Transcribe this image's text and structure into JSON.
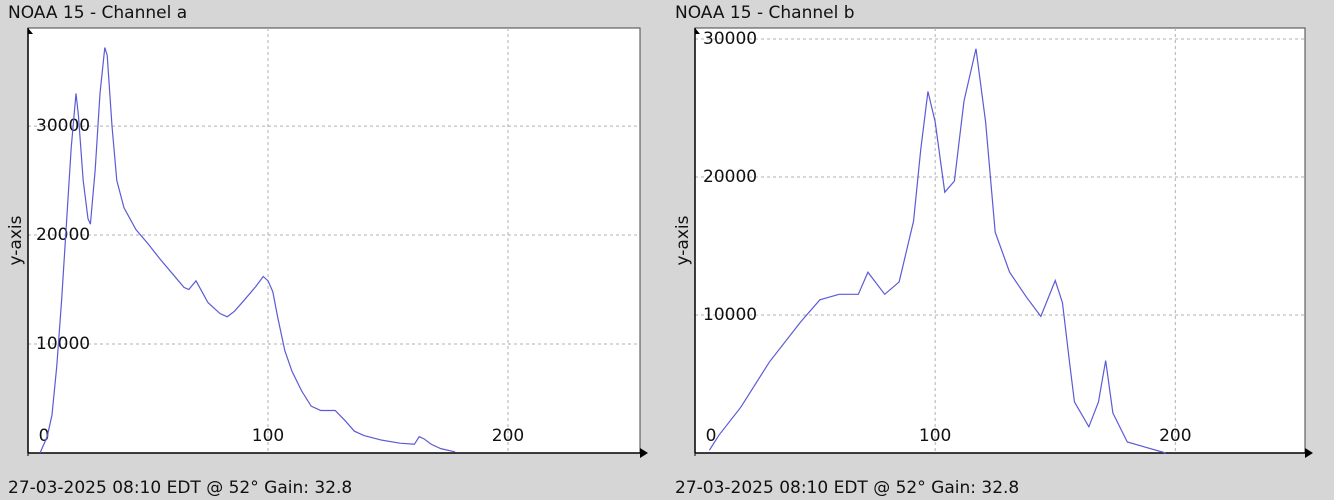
{
  "chart_data": [
    {
      "type": "line",
      "title": "NOAA 15 - Channel a",
      "footer": "27-03-2025 08:10 EDT @ 52° Gain: 32.8",
      "y_label": "y-axis",
      "xlim": [
        0,
        255
      ],
      "ylim": [
        0,
        39000
      ],
      "xticks": [
        0,
        100,
        200
      ],
      "yticks": [
        10000,
        20000,
        30000
      ],
      "grid": true,
      "series": [
        {
          "color": "#5b5bd6",
          "x": [
            5,
            8,
            10,
            12,
            14,
            16,
            18,
            20,
            21,
            23,
            25,
            26,
            28,
            30,
            32,
            33,
            35,
            37,
            40,
            45,
            50,
            55,
            60,
            65,
            67,
            70,
            72,
            75,
            80,
            83,
            86,
            90,
            95,
            98,
            100,
            102,
            104,
            107,
            110,
            114,
            118,
            122,
            128,
            132,
            136,
            140,
            147,
            155,
            161,
            163,
            165,
            168,
            172,
            178
          ],
          "values": [
            0,
            1500,
            3500,
            8000,
            14000,
            21000,
            28000,
            33000,
            31000,
            25000,
            21500,
            21000,
            26000,
            33000,
            37200,
            36500,
            30000,
            25000,
            22500,
            20500,
            19200,
            17800,
            16500,
            15200,
            15000,
            15800,
            15000,
            13800,
            12800,
            12500,
            13000,
            14000,
            15300,
            16200,
            15800,
            14800,
            12500,
            9400,
            7500,
            5700,
            4300,
            3900,
            3900,
            3000,
            2000,
            1600,
            1200,
            900,
            800,
            1500,
            1300,
            800,
            400,
            100
          ]
        }
      ]
    },
    {
      "type": "line",
      "title": "NOAA 15 - Channel b",
      "footer": "27-03-2025 08:10 EDT @ 52° Gain: 32.8",
      "y_label": "y-axis",
      "xlim": [
        0,
        254
      ],
      "ylim": [
        0,
        30800
      ],
      "xticks": [
        0,
        100,
        200
      ],
      "yticks": [
        10000,
        20000,
        30000
      ],
      "grid": true,
      "series": [
        {
          "color": "#5b5bd6",
          "x": [
            6,
            10,
            19,
            31,
            44,
            52,
            60,
            68,
            72,
            79,
            85,
            91,
            94,
            97,
            100,
            104,
            108,
            112,
            117,
            121,
            125,
            131,
            138,
            144,
            150,
            153,
            156,
            158,
            164,
            168,
            171,
            174,
            180,
            196
          ],
          "values": [
            200,
            1300,
            3300,
            6600,
            9500,
            11100,
            11500,
            11500,
            13100,
            11500,
            12400,
            16800,
            22000,
            26200,
            24000,
            18900,
            19700,
            25500,
            29300,
            24000,
            16000,
            13100,
            11300,
            9900,
            12500,
            10900,
            6500,
            3700,
            1900,
            3700,
            6700,
            2900,
            800,
            0
          ]
        }
      ]
    }
  ]
}
